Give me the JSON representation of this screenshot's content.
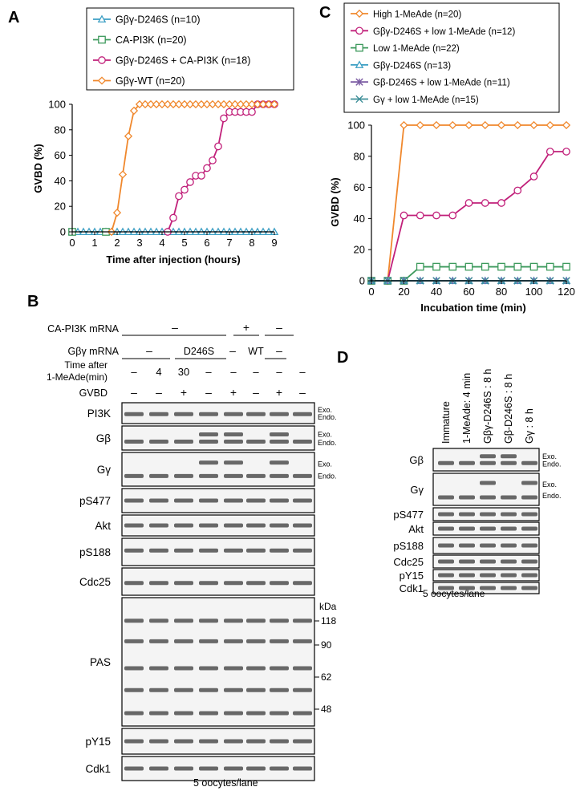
{
  "panels": {
    "A": "A",
    "B": "B",
    "C": "C",
    "D": "D"
  },
  "colors": {
    "orange": "#f0882d",
    "magenta": "#c1207a",
    "green": "#3d9a5c",
    "cyan": "#3d9fc4",
    "purple": "#7b5ca3",
    "teal": "#3f8f99"
  },
  "chart_data": [
    {
      "type": "line",
      "panel": "A",
      "xlabel": "Time after injection (hours)",
      "ylabel": "GVBD (%)",
      "xlim": [
        0,
        9
      ],
      "ylim": [
        0,
        100
      ],
      "xticks": [
        0,
        1,
        2,
        3,
        4,
        5,
        6,
        7,
        8,
        9
      ],
      "yticks": [
        0,
        20,
        40,
        60,
        80,
        100
      ],
      "legend_position": "top",
      "series": [
        {
          "name": "Gβγ-D246S (n=10)",
          "color": "#3d9fc4",
          "marker": "triangle",
          "x": [
            0,
            0.25,
            0.5,
            0.75,
            1,
            1.25,
            1.5,
            1.75,
            2,
            2.25,
            2.5,
            2.75,
            3,
            3.25,
            3.5,
            3.75,
            4,
            4.25,
            4.5,
            4.75,
            5,
            5.25,
            5.5,
            5.75,
            6,
            6.25,
            6.5,
            6.75,
            7,
            7.25,
            7.5,
            7.75,
            8,
            8.25,
            8.5,
            8.75,
            9
          ],
          "y": [
            0,
            0,
            0,
            0,
            0,
            0,
            0,
            0,
            0,
            0,
            0,
            0,
            0,
            0,
            0,
            0,
            0,
            0,
            0,
            0,
            0,
            0,
            0,
            0,
            0,
            0,
            0,
            0,
            0,
            0,
            0,
            0,
            0,
            0,
            0,
            0,
            0
          ]
        },
        {
          "name": "CA-PI3K (n=20)",
          "color": "#3d9a5c",
          "marker": "square",
          "x": [
            0,
            1.5
          ],
          "y": [
            0,
            0
          ]
        },
        {
          "name": "Gβγ-D246S + CA-PI3K (n=18)",
          "color": "#c1207a",
          "marker": "circle",
          "x": [
            4.25,
            4.5,
            4.75,
            5,
            5.25,
            5.5,
            5.75,
            6,
            6.25,
            6.5,
            6.75,
            7,
            7.25,
            7.5,
            7.75,
            8,
            8.25,
            8.5,
            8.75,
            9
          ],
          "y": [
            0,
            11,
            28,
            33,
            39,
            44,
            44,
            50,
            56,
            67,
            89,
            94,
            94,
            94,
            94,
            94,
            100,
            100,
            100,
            100
          ]
        },
        {
          "name": "Gβγ-WT (n=20)",
          "color": "#f0882d",
          "marker": "diamond",
          "x": [
            1.75,
            2,
            2.25,
            2.5,
            2.75,
            3,
            3.25,
            3.5,
            3.75,
            4,
            4.25,
            4.5,
            4.75,
            5,
            5.25,
            5.5,
            5.75,
            6,
            6.25,
            6.5,
            6.75,
            7,
            7.25,
            7.5,
            7.75,
            8,
            8.25,
            8.5,
            8.75,
            9
          ],
          "y": [
            0,
            15,
            45,
            75,
            95,
            100,
            100,
            100,
            100,
            100,
            100,
            100,
            100,
            100,
            100,
            100,
            100,
            100,
            100,
            100,
            100,
            100,
            100,
            100,
            100,
            100,
            100,
            100,
            100,
            100
          ]
        }
      ]
    },
    {
      "type": "line",
      "panel": "C",
      "xlabel": "Incubation time (min)",
      "ylabel": "GVBD (%)",
      "xlim": [
        0,
        120
      ],
      "ylim": [
        0,
        100
      ],
      "xticks": [
        0,
        20,
        40,
        60,
        80,
        100,
        120
      ],
      "yticks": [
        0,
        20,
        40,
        60,
        80,
        100
      ],
      "legend_position": "top",
      "series": [
        {
          "name": "High 1-MeAde (n=20)",
          "color": "#f0882d",
          "marker": "diamond",
          "x": [
            0,
            10,
            20,
            30,
            40,
            50,
            60,
            70,
            80,
            90,
            100,
            110,
            120
          ],
          "y": [
            0,
            0,
            100,
            100,
            100,
            100,
            100,
            100,
            100,
            100,
            100,
            100,
            100
          ]
        },
        {
          "name": "Gβγ-D246S + low 1-MeAde (n=12)",
          "color": "#c1207a",
          "marker": "circle",
          "x": [
            0,
            10,
            20,
            30,
            40,
            50,
            60,
            70,
            80,
            90,
            100,
            110,
            120
          ],
          "y": [
            0,
            0,
            42,
            42,
            42,
            42,
            50,
            50,
            50,
            58,
            67,
            83,
            83
          ]
        },
        {
          "name": "Low 1-MeAde (n=22)",
          "color": "#3d9a5c",
          "marker": "square",
          "x": [
            0,
            10,
            20,
            30,
            40,
            50,
            60,
            70,
            80,
            90,
            100,
            110,
            120
          ],
          "y": [
            0,
            0,
            0,
            9,
            9,
            9,
            9,
            9,
            9,
            9,
            9,
            9,
            9
          ]
        },
        {
          "name": "Gβγ-D246S (n=13)",
          "color": "#3d9fc4",
          "marker": "triangle",
          "x": [
            0,
            10,
            20,
            30,
            40,
            50,
            60,
            70,
            80,
            90,
            100,
            110,
            120
          ],
          "y": [
            0,
            0,
            0,
            0,
            0,
            0,
            0,
            0,
            0,
            0,
            0,
            0,
            0
          ]
        },
        {
          "name": "Gβ-D246S + low 1-MeAde (n=11)",
          "color": "#7b5ca3",
          "marker": "asterisk",
          "x": [
            0,
            10,
            20,
            30,
            40,
            50,
            60,
            70,
            80,
            90,
            100,
            110,
            120
          ],
          "y": [
            0,
            0,
            0,
            0,
            0,
            0,
            0,
            0,
            0,
            0,
            0,
            0,
            0
          ]
        },
        {
          "name": "Gγ + low 1-MeAde (n=15)",
          "color": "#3f8f99",
          "marker": "x",
          "x": [
            0,
            10,
            20,
            30,
            40,
            50,
            60,
            70,
            80,
            90,
            100,
            110,
            120
          ],
          "y": [
            0,
            0,
            0,
            0,
            0,
            0,
            0,
            0,
            0,
            0,
            0,
            0,
            0
          ]
        }
      ]
    },
    {
      "type": "table",
      "panel": "B",
      "condition_rows": [
        {
          "label": "CA-PI3K mRNA",
          "groups": [
            "–",
            "+",
            "–"
          ]
        },
        {
          "label": "Gβγ mRNA",
          "groups": [
            "–",
            "D246S",
            "–",
            "WT",
            "–"
          ]
        },
        {
          "label": "Time after",
          "label2": "1-MeAde(min)",
          "cells": [
            "–",
            "4",
            "30",
            "–",
            "–",
            "–",
            "–",
            "–"
          ]
        },
        {
          "label": "GVBD",
          "cells": [
            "–",
            "–",
            "+",
            "–",
            "+",
            "–",
            "+",
            "–"
          ]
        }
      ],
      "blot_rows": [
        "PI3K",
        "Gβ",
        "Gγ",
        "pS477",
        "Akt",
        "pS188",
        "Cdc25",
        "PAS",
        "pY15",
        "Cdk1"
      ],
      "side_labels": {
        "exo": "Exo.",
        "endo": "Endo."
      },
      "kda_label": "kDa",
      "kda_marks": [
        "118",
        "90",
        "62",
        "48"
      ],
      "footnote": "5 oocytes/lane"
    },
    {
      "type": "table",
      "panel": "D",
      "lanes": [
        "Immature",
        "1-MeAde: 4 min",
        "Gβγ-D246S : 8 h",
        "Gβ-D246S : 8 h",
        "Gγ : 8 h"
      ],
      "blot_rows": [
        "Gβ",
        "Gγ",
        "pS477",
        "Akt",
        "pS188",
        "Cdc25",
        "pY15",
        "Cdk1"
      ],
      "side_labels": {
        "exo": "Exo.",
        "endo": "Endo."
      },
      "footnote": "5 oocytes/lane"
    }
  ]
}
